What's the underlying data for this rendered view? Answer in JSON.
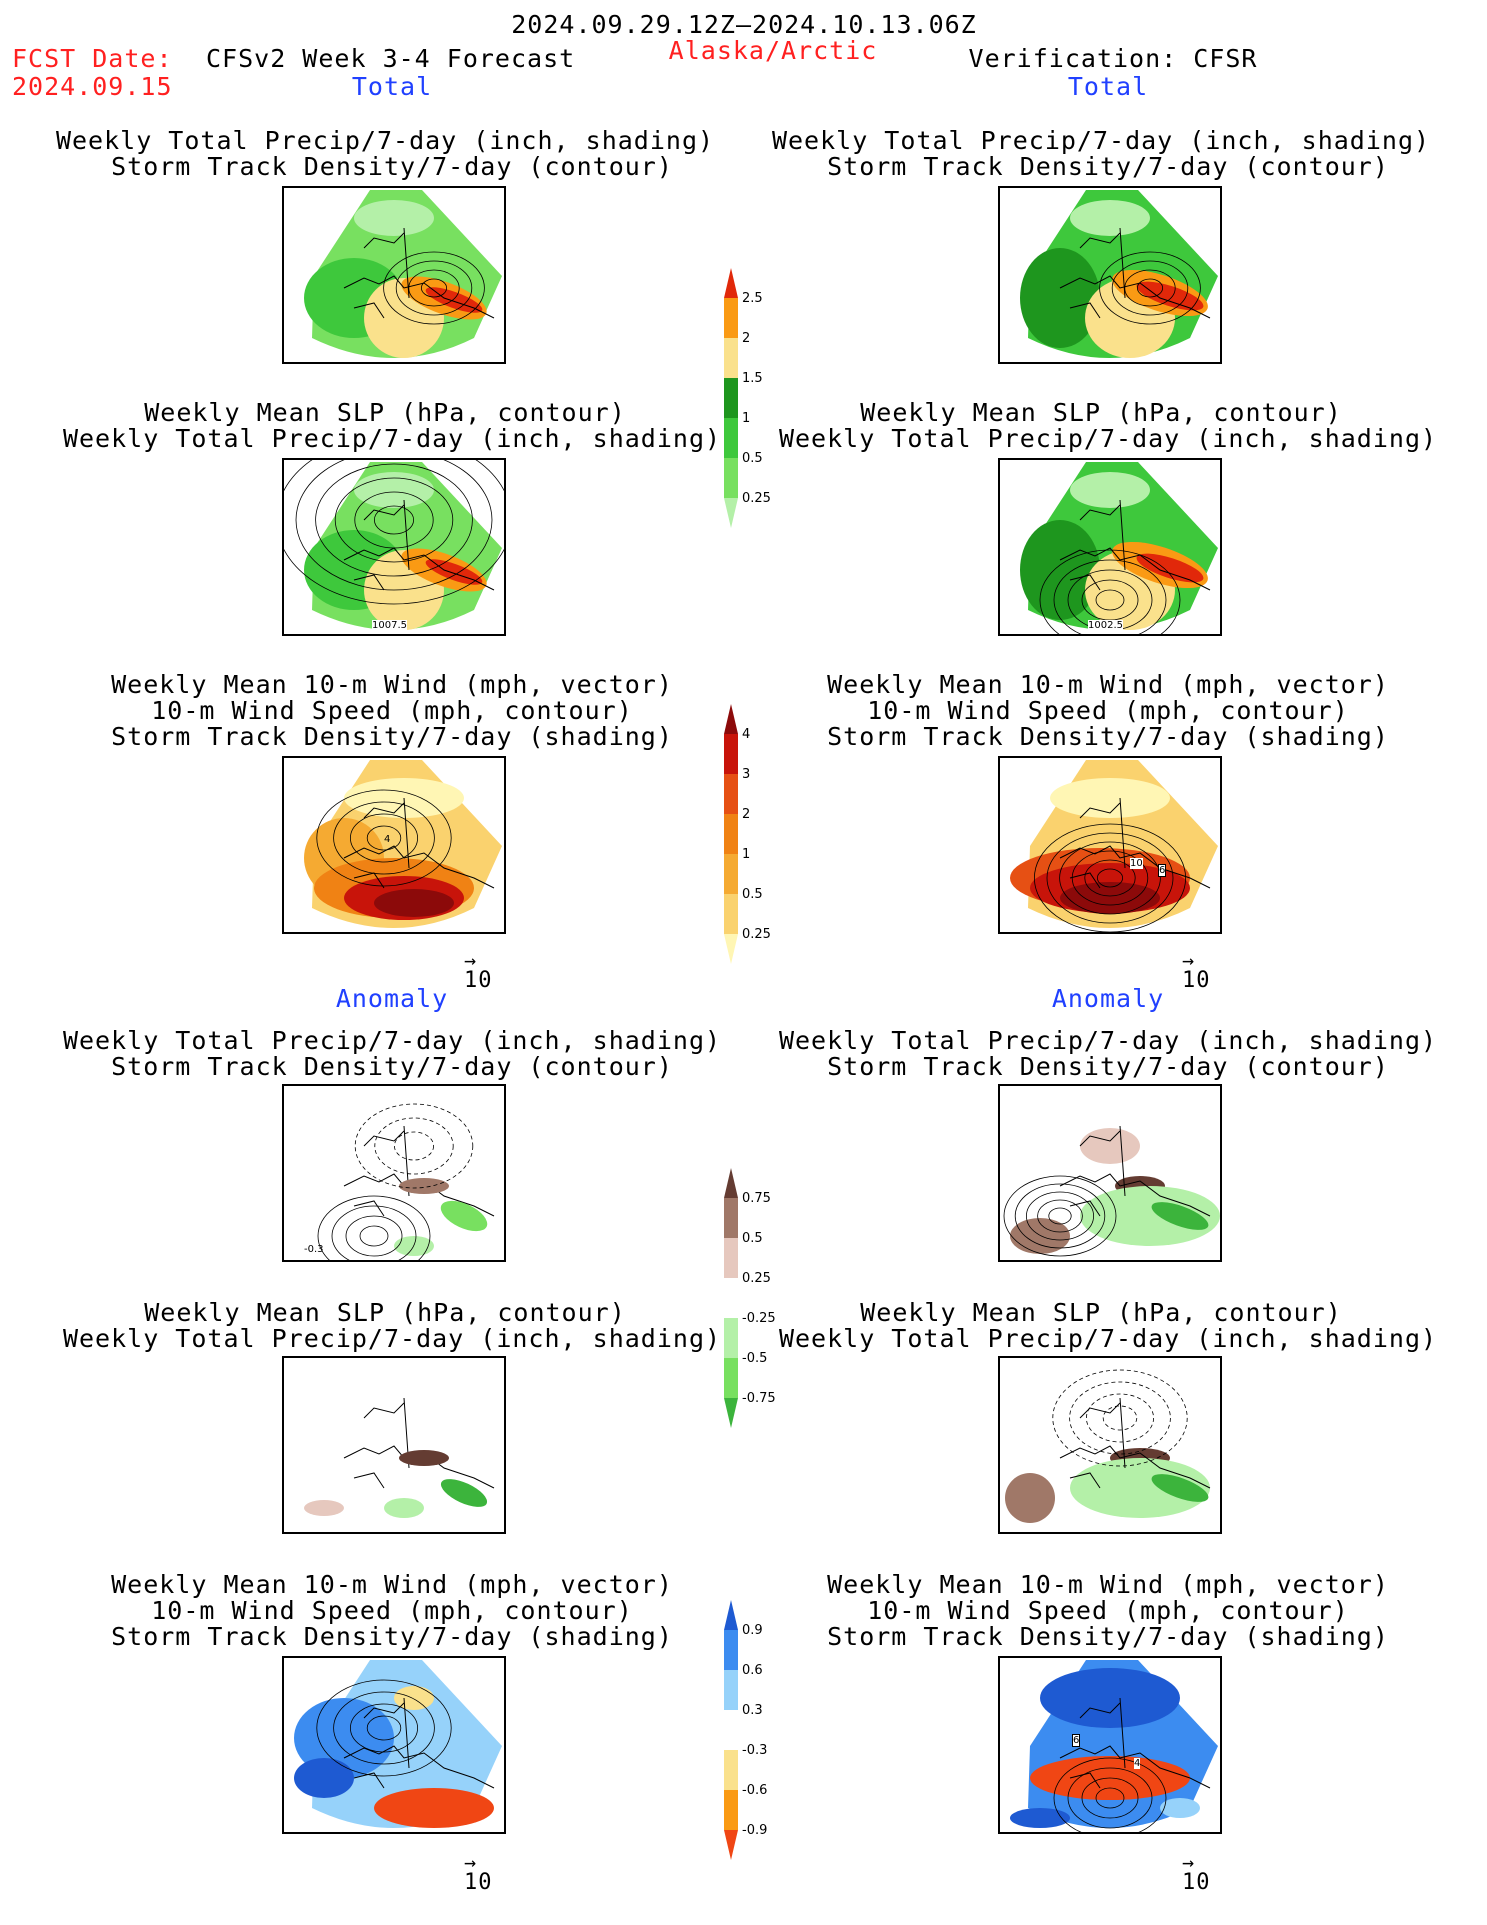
{
  "header": {
    "date_range": "2024.09.29.12Z–2024.10.13.06Z",
    "fcst_label": "FCST Date:",
    "fcst_date": "2024.09.15",
    "forecast_title": "CFSv2 Week 3-4 Forecast",
    "region": "Alaska/Arctic",
    "verification": "Verification: CFSR"
  },
  "sections": {
    "total": "Total",
    "anomaly": "Anomaly"
  },
  "titles": {
    "precip_storm": [
      "Weekly Total Precip/7-day (inch, shading)",
      "Storm Track Density/7-day (contour)"
    ],
    "slp_precip": [
      "Weekly Mean SLP (hPa, contour)",
      "Weekly Total Precip/7-day (inch, shading)"
    ],
    "wind_storm": [
      "Weekly Mean 10-m Wind (mph, vector)",
      "10-m Wind Speed (mph, contour)",
      "Storm Track Density/7-day (shading)"
    ]
  },
  "vector_ref": "10",
  "colors": {
    "red_text": "#ff2020",
    "blue_text": "#2040ff"
  },
  "chart_data": [
    {
      "type": "heatmap",
      "name": "precip_total_colorbar",
      "levels": [
        0.25,
        0.5,
        1,
        1.5,
        2,
        2.5
      ],
      "tick_labels": [
        "0.25",
        "0.5",
        "1",
        "1.5",
        "2",
        "2.5"
      ],
      "colors": [
        "#b4f0a8",
        "#78e060",
        "#3ec83c",
        "#1e961e",
        "#fae18c",
        "#fa9a14",
        "#e1280a"
      ]
    },
    {
      "type": "heatmap",
      "name": "storm_total_colorbar",
      "levels": [
        0.25,
        0.5,
        1,
        2,
        3,
        4
      ],
      "tick_labels": [
        "0.25",
        "0.5",
        "1",
        "2",
        "3",
        "4"
      ],
      "colors": [
        "#fff6b4",
        "#fad26e",
        "#f5aa32",
        "#f08214",
        "#e65014",
        "#c8140a",
        "#8c0a0a"
      ]
    },
    {
      "type": "heatmap",
      "name": "precip_anomaly_colorbar",
      "levels": [
        -0.75,
        -0.5,
        -0.25,
        0.25,
        0.5,
        0.75
      ],
      "tick_labels": [
        "0.75",
        "0.5",
        "0.25",
        "-0.25",
        "-0.5",
        "-0.75"
      ],
      "colors": [
        "#643c32",
        "#a07868",
        "#e6c8be",
        "#ffffff",
        "#b4f0a8",
        "#78e060",
        "#3cb43c"
      ]
    },
    {
      "type": "heatmap",
      "name": "storm_anomaly_colorbar",
      "levels": [
        -0.9,
        -0.6,
        -0.3,
        0.3,
        0.6,
        0.9
      ],
      "tick_labels": [
        "0.9",
        "0.6",
        "0.3",
        "-0.3",
        "-0.6",
        "-0.9"
      ],
      "colors": [
        "#1e5ad2",
        "#3c8cf0",
        "#96d2fa",
        "#ffffff",
        "#fae18c",
        "#fa9a14",
        "#f04614"
      ]
    }
  ],
  "map_labels": {
    "slp_fcst": "1007.5",
    "slp_cfsr": "1002.5",
    "wind_fcst": "4",
    "wind_cfsr_a": "10",
    "wind_cfsr_b": "6",
    "precip_anom_fcst": "-0.3",
    "wind_anom_cfsr_a": "6",
    "wind_anom_cfsr_b": "4"
  }
}
